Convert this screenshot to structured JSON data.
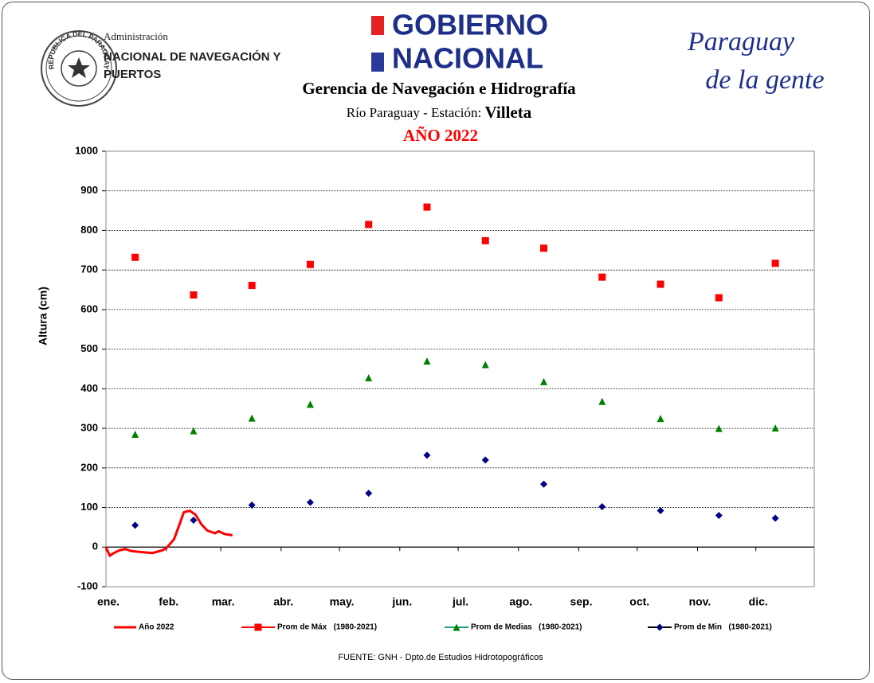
{
  "header": {
    "seal_text": "REPUBLICA DEL PARAGUAY",
    "agency_line1": "Administración",
    "agency_line2": "NACIONAL DE NAVEGACIÓN Y",
    "agency_line3": "PUERTOS",
    "gov_line1": "GOBIERNO",
    "gov_line2": "NACIONAL",
    "slogan_line1": "Paraguay",
    "slogan_line2": "de la gente"
  },
  "chart_data": {
    "type": "line",
    "title": "Gerencia de Navegación e Hidrografía",
    "subtitle": "Río Paraguay -  Estación:",
    "station": "Villeta",
    "year_title": "AÑO 2022",
    "y_label": "Altura (cm)",
    "source": "FUENTE:  GNH  - Dpto.de Estudios Hidrotopográficos",
    "xlim": [
      1,
      365
    ],
    "xticks": [
      {
        "value": 1,
        "label": "ene."
      },
      {
        "value": 32,
        "label": "feb."
      },
      {
        "value": 60,
        "label": "mar."
      },
      {
        "value": 91,
        "label": "abr."
      },
      {
        "value": 121,
        "label": "may."
      },
      {
        "value": 152,
        "label": "jun."
      },
      {
        "value": 182,
        "label": "jul."
      },
      {
        "value": 213,
        "label": "ago."
      },
      {
        "value": 244,
        "label": "sep."
      },
      {
        "value": 274,
        "label": "oct."
      },
      {
        "value": 305,
        "label": "nov."
      },
      {
        "value": 335,
        "label": "dic."
      }
    ],
    "ylim": [
      -100,
      1000
    ],
    "yticks": [
      -100,
      0,
      100,
      200,
      300,
      400,
      500,
      600,
      700,
      800,
      900,
      1000
    ],
    "grid": true,
    "series": [
      {
        "name": "Año 2022",
        "color": "#ff0000",
        "style": "line",
        "x": [
          1,
          3,
          5,
          8,
          11,
          14,
          20,
          25,
          30,
          32,
          36,
          39,
          41,
          44,
          47,
          50,
          53,
          57,
          59,
          62,
          66
        ],
        "values": [
          0,
          -22,
          -15,
          -8,
          -5,
          -10,
          -13,
          -15,
          -8,
          -3,
          20,
          60,
          88,
          92,
          82,
          58,
          42,
          35,
          40,
          33,
          30
        ]
      },
      {
        "name": "Prom de Máx   (1980-2021)",
        "color": "#ff0000",
        "legend_color": "#ff0000",
        "style": "markers",
        "marker": "square",
        "x": [
          16,
          46,
          76,
          106,
          136,
          166,
          196,
          226,
          256,
          286,
          316,
          345
        ],
        "values": [
          732,
          637,
          661,
          714,
          815,
          859,
          774,
          755,
          682,
          664,
          630,
          717
        ]
      },
      {
        "name": "Prom de Medias   (1980-2021)",
        "color": "#008000",
        "legend_color": "#20a080",
        "style": "markers",
        "marker": "triangle",
        "x": [
          16,
          46,
          76,
          106,
          136,
          166,
          196,
          226,
          256,
          286,
          316,
          345
        ],
        "values": [
          285,
          294,
          326,
          361,
          428,
          470,
          461,
          418,
          368,
          325,
          300,
          301
        ]
      },
      {
        "name": "Prom de Min   (1980-2021)",
        "color": "#000080",
        "legend_color": "#000000",
        "style": "markers",
        "marker": "diamond",
        "x": [
          16,
          46,
          76,
          106,
          136,
          166,
          196,
          226,
          256,
          286,
          316,
          345
        ],
        "values": [
          55,
          68,
          106,
          113,
          136,
          232,
          220,
          159,
          102,
          92,
          80,
          73
        ]
      }
    ]
  }
}
